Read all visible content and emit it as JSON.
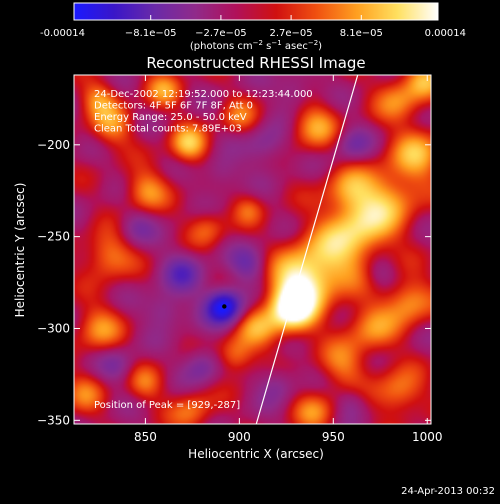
{
  "chart_data": {
    "type": "heatmap",
    "title": "Reconstructed RHESSI Image",
    "xlabel": "Heliocentric X (arcsec)",
    "ylabel": "Heliocentric Y (arcsec)",
    "xlim": [
      812,
      1002
    ],
    "ylim": [
      -352,
      -162
    ],
    "x_ticks": [
      850,
      900,
      950,
      1000
    ],
    "y_ticks": [
      -200,
      -250,
      -300,
      -350
    ],
    "colorbar": {
      "min": -0.00014,
      "max": 0.00014,
      "tick_labels": [
        "-0.00014",
        "−8.1e−05",
        "−2.7e−05",
        "2.7e−05",
        "8.1e−05",
        "0.00014"
      ],
      "tick_values": [
        -0.00014,
        -8.1e-05,
        -2.7e-05,
        2.7e-05,
        8.1e-05,
        0.00014
      ],
      "units": "(photons cm⁻² s⁻¹ asec⁻²)",
      "colors": [
        "#1a1aff",
        "#3a16c8",
        "#6a2aa8",
        "#902a8a",
        "#b0105a",
        "#d01010",
        "#f05010",
        "#ffa020",
        "#ffe060",
        "#ffffff"
      ]
    },
    "annotations": [
      "24-Dec-2002 12:19:52.000 to 12:23:44.000",
      "Detectors: 4F 5F 6F 7F 8F, Att 0",
      "Energy Range: 25.0 - 50.0 keV",
      "Clean     Total counts: 7.89E+03"
    ],
    "peak_label": "Position of Peak = [929,-287]",
    "peak": [
      929,
      -287
    ],
    "grid": false,
    "limb_line": [
      [
        909,
        -352
      ],
      [
        963,
        -162
      ]
    ],
    "blobs": [
      {
        "x": 928,
        "y": -290,
        "s": 9,
        "a": 1.0
      },
      {
        "x": 932,
        "y": -275,
        "s": 11,
        "a": 0.75
      },
      {
        "x": 948,
        "y": -262,
        "s": 14,
        "a": 0.55
      },
      {
        "x": 965,
        "y": -245,
        "s": 12,
        "a": 0.6
      },
      {
        "x": 980,
        "y": -228,
        "s": 12,
        "a": 0.5
      },
      {
        "x": 995,
        "y": -205,
        "s": 10,
        "a": 0.55
      },
      {
        "x": 958,
        "y": -225,
        "s": 9,
        "a": 0.45
      },
      {
        "x": 940,
        "y": -190,
        "s": 9,
        "a": 0.5
      },
      {
        "x": 985,
        "y": -175,
        "s": 9,
        "a": 0.45
      },
      {
        "x": 970,
        "y": -300,
        "s": 10,
        "a": 0.45
      },
      {
        "x": 990,
        "y": -285,
        "s": 9,
        "a": 0.55
      },
      {
        "x": 955,
        "y": -320,
        "s": 9,
        "a": 0.4
      },
      {
        "x": 985,
        "y": -335,
        "s": 9,
        "a": 0.5
      },
      {
        "x": 940,
        "y": -345,
        "s": 8,
        "a": 0.4
      },
      {
        "x": 898,
        "y": -315,
        "s": 7,
        "a": 0.5
      },
      {
        "x": 910,
        "y": -300,
        "s": 8,
        "a": 0.45
      },
      {
        "x": 875,
        "y": -345,
        "s": 8,
        "a": 0.4
      },
      {
        "x": 850,
        "y": -330,
        "s": 7,
        "a": 0.35
      },
      {
        "x": 825,
        "y": -300,
        "s": 9,
        "a": 0.45
      },
      {
        "x": 818,
        "y": -335,
        "s": 8,
        "a": 0.35
      },
      {
        "x": 830,
        "y": -260,
        "s": 9,
        "a": 0.5
      },
      {
        "x": 850,
        "y": -225,
        "s": 8,
        "a": 0.5
      },
      {
        "x": 832,
        "y": -190,
        "s": 8,
        "a": 0.45
      },
      {
        "x": 873,
        "y": -200,
        "s": 7,
        "a": 0.65
      },
      {
        "x": 860,
        "y": -170,
        "s": 7,
        "a": 0.45
      },
      {
        "x": 900,
        "y": -185,
        "s": 7,
        "a": 0.35
      },
      {
        "x": 883,
        "y": -245,
        "s": 7,
        "a": 0.35
      },
      {
        "x": 905,
        "y": -235,
        "s": 6,
        "a": 0.3
      },
      {
        "x": 825,
        "y": -175,
        "s": 7,
        "a": 0.45
      },
      {
        "x": 998,
        "y": -165,
        "s": 7,
        "a": 0.5
      },
      {
        "x": 892,
        "y": -288,
        "s": 7,
        "a": -1.0
      },
      {
        "x": 870,
        "y": -270,
        "s": 8,
        "a": -0.45
      },
      {
        "x": 905,
        "y": -265,
        "s": 7,
        "a": -0.4
      },
      {
        "x": 880,
        "y": -320,
        "s": 7,
        "a": -0.4
      },
      {
        "x": 860,
        "y": -290,
        "s": 7,
        "a": -0.35
      },
      {
        "x": 845,
        "y": -245,
        "s": 7,
        "a": -0.3
      },
      {
        "x": 915,
        "y": -200,
        "s": 8,
        "a": -0.35
      },
      {
        "x": 930,
        "y": -170,
        "s": 7,
        "a": -0.3
      },
      {
        "x": 890,
        "y": -215,
        "s": 7,
        "a": -0.3
      },
      {
        "x": 960,
        "y": -200,
        "s": 7,
        "a": -0.35
      },
      {
        "x": 975,
        "y": -270,
        "s": 6,
        "a": -0.25
      },
      {
        "x": 920,
        "y": -330,
        "s": 7,
        "a": -0.3
      },
      {
        "x": 835,
        "y": -320,
        "s": 7,
        "a": -0.3
      },
      {
        "x": 960,
        "y": -340,
        "s": 6,
        "a": -0.25
      }
    ]
  },
  "footer": {
    "timestamp": "24-Apr-2013 00:32"
  }
}
